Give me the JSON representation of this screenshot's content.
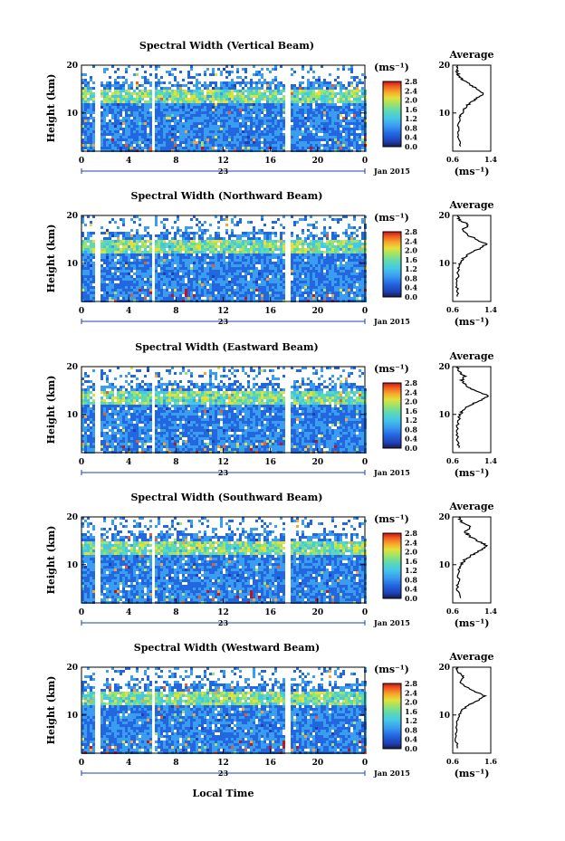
{
  "figure": {
    "colors": {
      "scale": [
        "#1a1a4a",
        "#1f3fb5",
        "#2266e0",
        "#3a9df0",
        "#45c8e6",
        "#5fd9b0",
        "#9be36a",
        "#e3e03a",
        "#f7a52b",
        "#f05a1f",
        "#c3141a"
      ],
      "background": "#ffffff",
      "text": "#000000"
    },
    "x_axis_label": "Local Time",
    "day_label": "23",
    "date_label": "Jan 2015",
    "unit_label": "(ms⁻¹)",
    "average_title": "Average",
    "average_unit": "(ms⁻¹)",
    "y_axis_label": "Height (km)"
  },
  "chart_data": [
    {
      "type": "heatmap",
      "title": "Spectral Width (Vertical Beam)",
      "xlabel": "",
      "ylabel": "Height (km)",
      "x_ticks": [
        "0",
        "4",
        "8",
        "12",
        "16",
        "20",
        "0"
      ],
      "y_ticks": [
        "20",
        "10"
      ],
      "xlim": [
        0,
        24
      ],
      "ylim": [
        2,
        20
      ],
      "data_gaps_hours": [
        [
          1.0,
          1.4
        ],
        [
          5.9,
          6.2
        ],
        [
          17.2,
          17.6
        ]
      ],
      "colorbar": {
        "ticks": [
          "2.8",
          "2.4",
          "2.0",
          "1.6",
          "1.2",
          "0.8",
          "0.4",
          "0.0"
        ],
        "range": [
          0.0,
          2.8
        ]
      },
      "average_profile": {
        "xlim": [
          0.6,
          1.4
        ],
        "x_ticks": [
          "0.6",
          "1.4"
        ],
        "y_ticks": [
          "20",
          "10"
        ],
        "height_km": [
          3,
          5,
          7,
          9,
          10,
          11,
          12,
          13,
          14,
          15,
          16,
          17,
          18,
          19,
          20
        ],
        "width_ms": [
          0.78,
          0.7,
          0.72,
          0.74,
          0.8,
          0.85,
          0.95,
          1.1,
          1.25,
          1.12,
          0.95,
          0.8,
          0.72,
          0.68,
          0.7
        ]
      }
    },
    {
      "type": "heatmap",
      "title": "Spectral Width (Northward Beam)",
      "xlabel": "",
      "ylabel": "Height (km)",
      "x_ticks": [
        "0",
        "4",
        "8",
        "12",
        "16",
        "20",
        "0"
      ],
      "y_ticks": [
        "20",
        "10"
      ],
      "xlim": [
        0,
        24
      ],
      "ylim": [
        2,
        20
      ],
      "data_gaps_hours": [
        [
          1.0,
          1.4
        ],
        [
          5.9,
          6.2
        ],
        [
          17.2,
          17.6
        ]
      ],
      "colorbar": {
        "ticks": [
          "2.8",
          "2.4",
          "2.0",
          "1.6",
          "1.2",
          "0.8",
          "0.4",
          "0.0"
        ],
        "range": [
          0.0,
          2.8
        ]
      },
      "average_profile": {
        "xlim": [
          0.6,
          1.4
        ],
        "x_ticks": [
          "0.6",
          "1.4"
        ],
        "y_ticks": [
          "20",
          "10"
        ],
        "height_km": [
          3,
          5,
          7,
          9,
          10,
          11,
          12,
          13,
          14,
          15,
          16,
          17,
          18,
          19,
          20
        ],
        "width_ms": [
          0.72,
          0.68,
          0.7,
          0.72,
          0.75,
          0.82,
          0.95,
          1.15,
          1.3,
          1.1,
          0.9,
          0.8,
          0.95,
          0.75,
          0.7
        ]
      }
    },
    {
      "type": "heatmap",
      "title": "Spectral Width (Eastward Beam)",
      "xlabel": "",
      "ylabel": "Height (km)",
      "x_ticks": [
        "0",
        "4",
        "8",
        "12",
        "16",
        "20",
        "0"
      ],
      "y_ticks": [
        "20",
        "10"
      ],
      "xlim": [
        0,
        24
      ],
      "ylim": [
        2,
        20
      ],
      "data_gaps_hours": [
        [
          1.0,
          1.4
        ],
        [
          5.9,
          6.2
        ],
        [
          17.2,
          17.6
        ]
      ],
      "colorbar": {
        "ticks": [
          "2.8",
          "2.4",
          "2.0",
          "1.6",
          "1.2",
          "0.8",
          "0.4",
          "0.0"
        ],
        "range": [
          0.0,
          2.8
        ]
      },
      "average_profile": {
        "xlim": [
          0.6,
          1.4
        ],
        "x_ticks": [
          "0.6",
          "1.4"
        ],
        "y_ticks": [
          "20",
          "10"
        ],
        "height_km": [
          3,
          5,
          7,
          9,
          10,
          11,
          12,
          13,
          14,
          15,
          16,
          17,
          18,
          19,
          20
        ],
        "width_ms": [
          0.74,
          0.7,
          0.7,
          0.72,
          0.76,
          0.82,
          0.98,
          1.2,
          1.35,
          1.05,
          0.9,
          0.78,
          0.85,
          0.72,
          0.7
        ]
      }
    },
    {
      "type": "heatmap",
      "title": "Spectral Width (Southward Beam)",
      "xlabel": "",
      "ylabel": "Height (km)",
      "x_ticks": [
        "0",
        "4",
        "8",
        "12",
        "16",
        "20",
        "0"
      ],
      "y_ticks": [
        "20",
        "10"
      ],
      "xlim": [
        0,
        24
      ],
      "ylim": [
        2,
        20
      ],
      "data_gaps_hours": [
        [
          1.0,
          1.4
        ],
        [
          5.9,
          6.2
        ],
        [
          17.2,
          17.6
        ]
      ],
      "colorbar": {
        "ticks": [
          "2.8",
          "2.4",
          "2.0",
          "1.6",
          "1.2",
          "0.8",
          "0.4",
          "0.0"
        ],
        "range": [
          0.0,
          2.8
        ]
      },
      "average_profile": {
        "xlim": [
          0.6,
          1.4
        ],
        "x_ticks": [
          "0.6",
          "1.4"
        ],
        "y_ticks": [
          "20",
          "10"
        ],
        "height_km": [
          3,
          5,
          7,
          9,
          10,
          11,
          12,
          13,
          14,
          15,
          16,
          17,
          18,
          19,
          20
        ],
        "width_ms": [
          0.75,
          0.7,
          0.72,
          0.74,
          0.78,
          0.85,
          1.0,
          1.18,
          1.32,
          1.12,
          0.95,
          0.85,
          1.0,
          0.78,
          0.72
        ]
      }
    },
    {
      "type": "heatmap",
      "title": "Spectral Width (Westward Beam)",
      "xlabel": "Local Time",
      "ylabel": "Height (km)",
      "x_ticks": [
        "0",
        "4",
        "8",
        "12",
        "16",
        "20",
        "0"
      ],
      "y_ticks": [
        "20",
        "10"
      ],
      "xlim": [
        0,
        24
      ],
      "ylim": [
        2,
        20
      ],
      "data_gaps_hours": [
        [
          1.0,
          1.4
        ],
        [
          5.9,
          6.2
        ],
        [
          17.2,
          17.6
        ]
      ],
      "colorbar": {
        "ticks": [
          "2.8",
          "2.4",
          "2.0",
          "1.6",
          "1.2",
          "0.8",
          "0.4",
          "0.0"
        ],
        "range": [
          0.0,
          2.8
        ]
      },
      "average_profile": {
        "xlim": [
          0.6,
          1.6
        ],
        "x_ticks": [
          "0.6",
          "1.6"
        ],
        "y_ticks": [
          "20",
          "10"
        ],
        "height_km": [
          3,
          5,
          7,
          9,
          10,
          11,
          12,
          13,
          14,
          15,
          16,
          17,
          18,
          19,
          20
        ],
        "width_ms": [
          0.74,
          0.68,
          0.7,
          0.72,
          0.76,
          0.84,
          1.0,
          1.25,
          1.45,
          1.15,
          0.92,
          0.8,
          0.88,
          0.74,
          0.7
        ]
      }
    }
  ]
}
